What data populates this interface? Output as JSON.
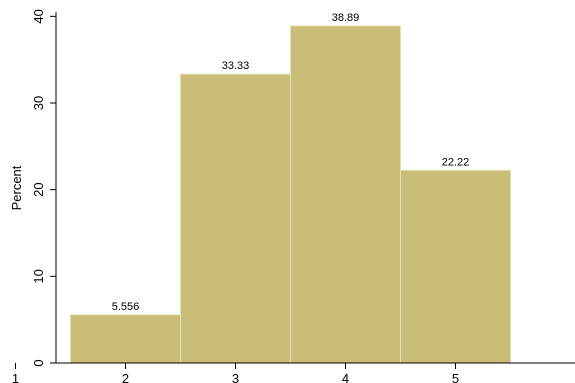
{
  "chart_data": {
    "type": "bar",
    "title": "",
    "xlabel": "",
    "ylabel": "Percent",
    "bins": [
      {
        "x0": 1.5,
        "x1": 2.5,
        "value": 5.556,
        "label": "5.556"
      },
      {
        "x0": 2.5,
        "x1": 3.5,
        "value": 33.33,
        "label": "33.33"
      },
      {
        "x0": 3.5,
        "x1": 4.5,
        "value": 38.89,
        "label": "38.89"
      },
      {
        "x0": 4.5,
        "x1": 5.5,
        "value": 22.22,
        "label": "22.22"
      }
    ],
    "x_ticks": [
      "1",
      "2",
      "3",
      "4",
      "5"
    ],
    "x_tick_values": [
      1,
      2,
      3,
      4,
      5
    ],
    "y_ticks": [
      "0",
      "10",
      "20",
      "30",
      "40"
    ],
    "y_tick_values": [
      0,
      10,
      20,
      30,
      40
    ],
    "xlim": [
      0.95,
      5.95
    ],
    "ylim": [
      0,
      40.5
    ],
    "bar_color": "#c9bd78",
    "bar_edge_color": "#e6dfb0",
    "grid": false,
    "legend": false
  }
}
